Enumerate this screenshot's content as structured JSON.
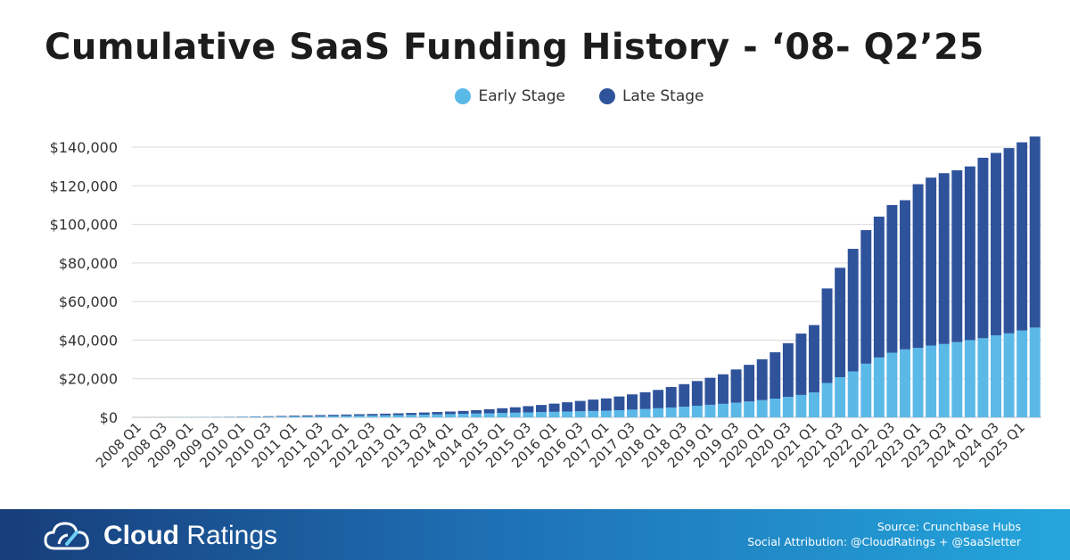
{
  "chart_data": {
    "type": "bar",
    "stacked": true,
    "title": "Cumulative SaaS Funding History - ‘08- Q2’25",
    "xlabel": "",
    "ylabel": "",
    "ylim": [
      0,
      145000
    ],
    "yticks": [
      "$0",
      "$20,000",
      "$40,000",
      "$60,000",
      "$80,000",
      "$100,000",
      "$120,000",
      "$140,000"
    ],
    "ytick_values": [
      0,
      20000,
      40000,
      60000,
      80000,
      100000,
      120000,
      140000
    ],
    "grid": true,
    "legend": "top-center",
    "categories": [
      "2008 Q1",
      "2008 Q2",
      "2008 Q3",
      "2008 Q4",
      "2009 Q1",
      "2009 Q2",
      "2009 Q3",
      "2009 Q4",
      "2010 Q1",
      "2010 Q2",
      "2010 Q3",
      "2010 Q4",
      "2011 Q1",
      "2011 Q2",
      "2011 Q3",
      "2011 Q4",
      "2012 Q1",
      "2012 Q2",
      "2012 Q3",
      "2012 Q4",
      "2013 Q1",
      "2013 Q2",
      "2013 Q3",
      "2013 Q4",
      "2014 Q1",
      "2014 Q2",
      "2014 Q3",
      "2014 Q4",
      "2015 Q1",
      "2015 Q2",
      "2015 Q3",
      "2015 Q4",
      "2016 Q1",
      "2016 Q2",
      "2016 Q3",
      "2016 Q4",
      "2017 Q1",
      "2017 Q2",
      "2017 Q3",
      "2017 Q4",
      "2018 Q1",
      "2018 Q2",
      "2018 Q3",
      "2018 Q4",
      "2019 Q1",
      "2019 Q2",
      "2019 Q3",
      "2019 Q4",
      "2020 Q1",
      "2020 Q2",
      "2020 Q3",
      "2020 Q4",
      "2021 Q1",
      "2021 Q2",
      "2021 Q3",
      "2021 Q4",
      "2022 Q1",
      "2022 Q2",
      "2022 Q3",
      "2022 Q4",
      "2023 Q1",
      "2023 Q2",
      "2023 Q3",
      "2023 Q4",
      "2024 Q1",
      "2024 Q2",
      "2024 Q3",
      "2024 Q4",
      "2025 Q1",
      "2025 Q2"
    ],
    "xtick_labels": [
      "2008 Q1",
      "2008 Q3",
      "2009 Q1",
      "2009 Q3",
      "2010 Q1",
      "2010 Q3",
      "2011 Q1",
      "2011 Q3",
      "2012 Q1",
      "2012 Q3",
      "2013 Q1",
      "2013 Q3",
      "2014 Q1",
      "2014 Q3",
      "2015 Q1",
      "2015 Q3",
      "2016 Q1",
      "2016 Q3",
      "2017 Q1",
      "2017 Q3",
      "2018 Q1",
      "2018 Q3",
      "2019 Q1",
      "2019 Q3",
      "2020 Q1",
      "2020 Q3",
      "2021 Q1",
      "2021 Q3",
      "2022 Q1",
      "2022 Q3",
      "2023 Q1",
      "2023 Q3",
      "2024 Q1",
      "2024 Q3",
      "2025 Q1"
    ],
    "series": [
      {
        "name": "Early Stage",
        "color": "#5bb9e8",
        "values": [
          20,
          40,
          60,
          80,
          100,
          120,
          150,
          180,
          220,
          270,
          320,
          380,
          450,
          520,
          600,
          680,
          760,
          850,
          940,
          1030,
          1130,
          1250,
          1380,
          1520,
          1660,
          1800,
          1950,
          2100,
          2250,
          2400,
          2550,
          2700,
          2850,
          3000,
          3150,
          3300,
          3450,
          3700,
          4000,
          4300,
          4700,
          5100,
          5500,
          6000,
          6500,
          7000,
          7600,
          8200,
          8900,
          9700,
          10600,
          11600,
          12900,
          17800,
          20800,
          23800,
          27800,
          31000,
          33500,
          35200,
          36000,
          37200,
          38000,
          39000,
          40000,
          41000,
          42500,
          43500,
          45000,
          46500
        ]
      },
      {
        "name": "Late Stage",
        "color": "#2f539b",
        "values": [
          0,
          0,
          0,
          0,
          0,
          20,
          50,
          80,
          130,
          180,
          260,
          320,
          400,
          480,
          560,
          620,
          690,
          750,
          810,
          870,
          950,
          1030,
          1120,
          1230,
          1340,
          1500,
          1750,
          2100,
          2450,
          2800,
          3250,
          3700,
          4250,
          4800,
          5350,
          5900,
          6350,
          7100,
          7900,
          8700,
          9500,
          10600,
          11700,
          12800,
          14000,
          15300,
          17200,
          19000,
          21200,
          24000,
          27800,
          31800,
          34900,
          49000,
          56700,
          63500,
          69200,
          73000,
          76500,
          77300,
          84800,
          87000,
          88500,
          89000,
          90000,
          93500,
          94500,
          96000,
          97500,
          99000
        ]
      }
    ]
  },
  "legend": {
    "early": "Early Stage",
    "late": "Late Stage"
  },
  "footer": {
    "brand_bold": "Cloud",
    "brand_rest": " Ratings",
    "source": "Source: Crunchbase Hubs",
    "attribution": "Social Attribution: @CloudRatings + @SaaSletter"
  }
}
